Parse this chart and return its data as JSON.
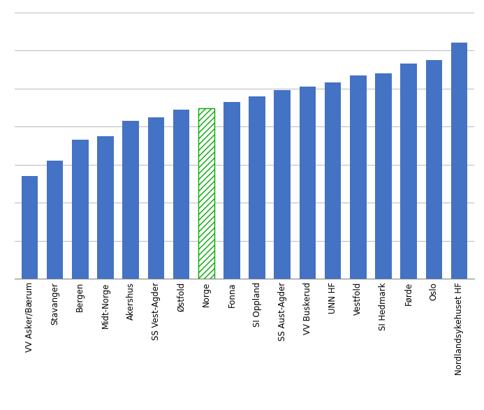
{
  "categories": [
    "VV Asker/Bærum",
    "Stavanger",
    "Bergen",
    "Midt-Norge",
    "Akershus",
    "SS Vest-Agder",
    "Østfold",
    "Norge",
    "Fonna",
    "SI Oppland",
    "SS Aust-Agder",
    "VV Buskerud",
    "UNN HF",
    "Vestfold",
    "SI Hedmark",
    "Førde",
    "Oslo",
    "Nordlandsykehuset HF"
  ],
  "values": [
    27,
    31,
    36.5,
    37.5,
    41.5,
    42.5,
    44.5,
    44.8,
    46.5,
    48,
    49.5,
    50.5,
    51.5,
    53.5,
    54,
    56.5,
    57.5,
    62
  ],
  "bar_color": "#4472C4",
  "norge_color": "#00AA00",
  "background_color": "#FFFFFF",
  "grid_color": "#C0C0C0",
  "ylim": [
    0,
    70
  ],
  "tick_fontsize": 8.5
}
